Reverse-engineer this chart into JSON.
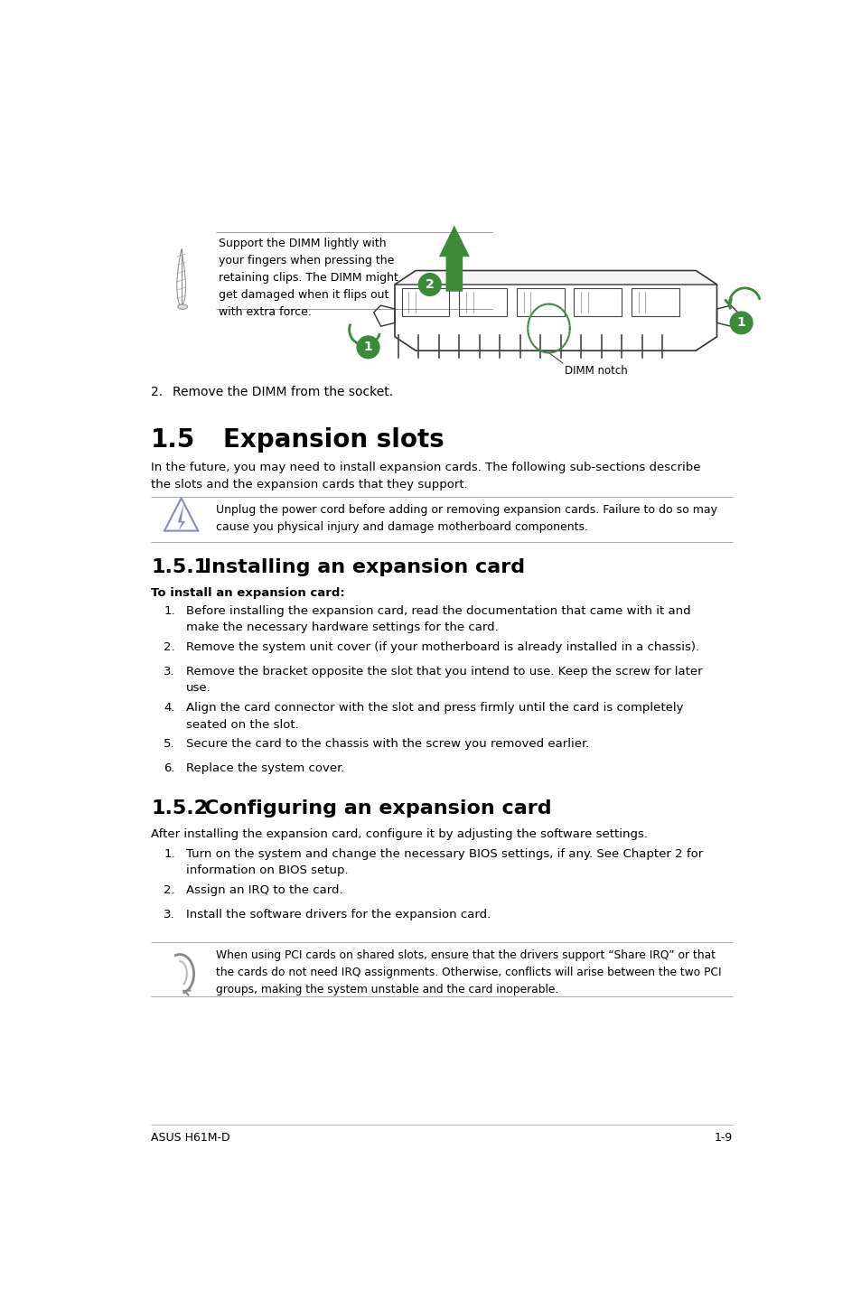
{
  "page_bg": "#ffffff",
  "footer_left": "ASUS H61M-D",
  "footer_right": "1-9",
  "note_text_1": "Support the DIMM lightly with\nyour fingers when pressing the\nretaining clips. The DIMM might\nget damaged when it flips out\nwith extra force.",
  "step2_text": "2.     Remove the DIMM from the socket.",
  "section_title_num": "1.5",
  "section_title_text": "Expansion slots",
  "section_intro": "In the future, you may need to install expansion cards. The following sub-sections describe\nthe slots and the expansion cards that they support.",
  "warning_text": "Unplug the power cord before adding or removing expansion cards. Failure to do so may\ncause you physical injury and damage motherboard components.",
  "sub1_num": "1.5.1",
  "sub1_text": "Installing an expansion card",
  "sub1_bold": "To install an expansion card:",
  "install_steps": [
    "Before installing the expansion card, read the documentation that came with it and\nmake the necessary hardware settings for the card.",
    "Remove the system unit cover (if your motherboard is already installed in a chassis).",
    "Remove the bracket opposite the slot that you intend to use. Keep the screw for later\nuse.",
    "Align the card connector with the slot and press firmly until the card is completely\nseated on the slot.",
    "Secure the card to the chassis with the screw you removed earlier.",
    "Replace the system cover."
  ],
  "sub2_num": "1.5.2",
  "sub2_text": "Configuring an expansion card",
  "sub2_intro": "After installing the expansion card, configure it by adjusting the software settings.",
  "config_steps": [
    "Turn on the system and change the necessary BIOS settings, if any. See Chapter 2 for\ninformation on BIOS setup.",
    "Assign an IRQ to the card.",
    "Install the software drivers for the expansion card."
  ],
  "note_text_2": "When using PCI cards on shared slots, ensure that the drivers support “Share IRQ” or that\nthe cards do not need IRQ assignments. Otherwise, conflicts will arise between the two PCI\ngroups, making the system unstable and the card inoperable.",
  "green": "#3a8a3a",
  "dark_green": "#2d7a2d",
  "line_color": "#bbbbbb",
  "warn_icon_color": "#8888cc",
  "text_color": "#000000"
}
